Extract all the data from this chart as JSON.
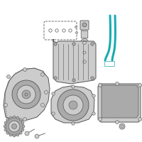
{
  "bg_color": "#ffffff",
  "fig_size": [
    2.0,
    2.0
  ],
  "dpi": 100,
  "highlight_color": "#1aabb0",
  "dark_color": "#555555",
  "mid_color": "#888888",
  "light_color": "#cccccc",
  "inner_color": "#aaaaaa"
}
